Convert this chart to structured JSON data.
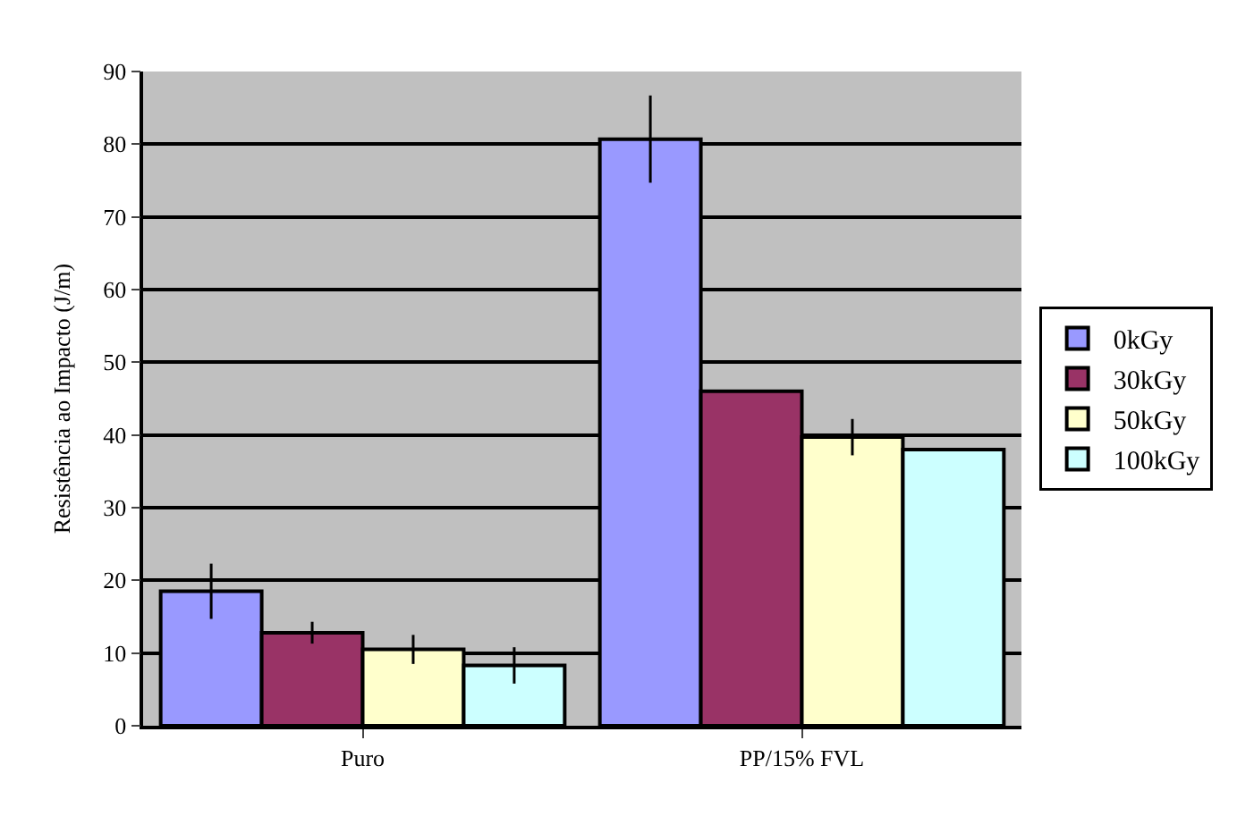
{
  "chart_data": {
    "type": "bar",
    "ylabel": "Resistência ao Impacto (J/m)",
    "categories": [
      "Puro",
      "PP/15% FVL"
    ],
    "series": [
      {
        "name": "0kGy",
        "color": "#9999ff",
        "values": [
          18.5,
          80.7
        ],
        "errors": [
          3.8,
          6
        ]
      },
      {
        "name": "30kGy",
        "color": "#993366",
        "values": [
          12.8,
          46
        ],
        "errors": [
          1.5,
          null
        ]
      },
      {
        "name": "50kGy",
        "color": "#ffffcc",
        "values": [
          10.5,
          39.7
        ],
        "errors": [
          2,
          2.5
        ]
      },
      {
        "name": "100kGy",
        "color": "#ccffff",
        "values": [
          8.3,
          38
        ],
        "errors": [
          2.5,
          null
        ]
      }
    ],
    "ylim": [
      0,
      90
    ],
    "yticks": [
      0,
      10,
      20,
      30,
      40,
      50,
      60,
      70,
      80,
      90
    ],
    "grid": "y",
    "legend": "right"
  }
}
